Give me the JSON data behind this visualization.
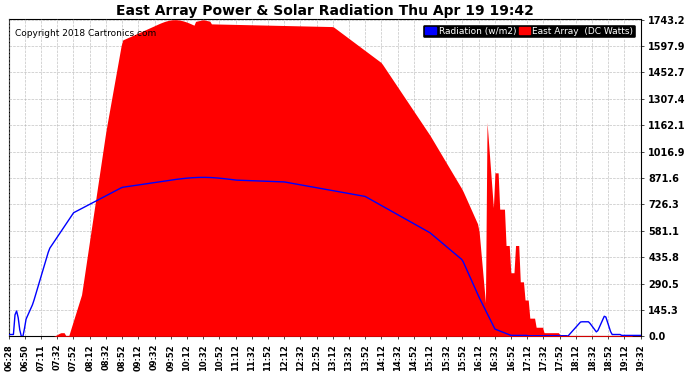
{
  "title": "East Array Power & Solar Radiation Thu Apr 19 19:42",
  "copyright": "Copyright 2018 Cartronics.com",
  "bg_color": "#ffffff",
  "plot_bg_color": "#ffffff",
  "grid_color": "#aaaaaa",
  "y_ticks": [
    0.0,
    145.3,
    290.5,
    435.8,
    581.1,
    726.3,
    871.6,
    1016.9,
    1162.1,
    1307.4,
    1452.7,
    1597.9,
    1743.2
  ],
  "x_labels": [
    "06:28",
    "06:50",
    "07:11",
    "07:32",
    "07:52",
    "08:12",
    "08:32",
    "08:52",
    "09:12",
    "09:32",
    "09:52",
    "10:12",
    "10:32",
    "10:52",
    "11:12",
    "11:32",
    "11:52",
    "12:12",
    "12:32",
    "12:52",
    "13:12",
    "13:32",
    "13:52",
    "14:12",
    "14:32",
    "14:52",
    "15:12",
    "15:32",
    "15:52",
    "16:12",
    "16:32",
    "16:52",
    "17:12",
    "17:32",
    "17:52",
    "18:12",
    "18:32",
    "18:52",
    "19:12",
    "19:32"
  ],
  "legend_radiation_label": "Radiation (w/m2)",
  "legend_east_label": "East Array  (DC Watts)",
  "fill_color": "#ff0000",
  "line_color": "#0000ff",
  "y_max": 1743.2,
  "y_min": 0.0
}
